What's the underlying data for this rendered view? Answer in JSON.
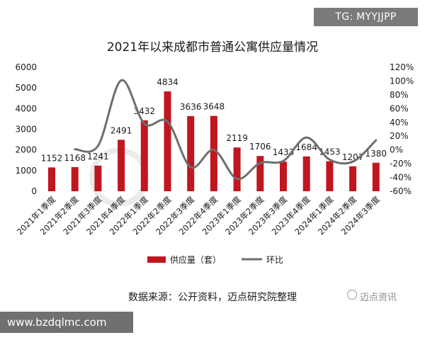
{
  "badge": {
    "tg": "TG: MYYJJPP",
    "url": "www.bzdqlmc.com"
  },
  "source": "数据来源：公开资料，迈点研究院整理",
  "watermark": {
    "label": "迈点资讯",
    "icon": "at-sign-icon"
  },
  "colors": {
    "bar": "#c0161f",
    "line": "#6e6e6e",
    "grid": "#d8d8d8",
    "text": "#1a1a1a"
  },
  "chart_data": {
    "type": "bar",
    "title": "2021年以来成都市普通公寓供应量情况",
    "categories": [
      "2021年1季度",
      "2021年2季度",
      "2021年3季度",
      "2021年4季度",
      "2022年1季度",
      "2022年2季度",
      "2022年3季度",
      "2022年4季度",
      "2023年1季度",
      "2023年2季度",
      "2023年3季度",
      "2023年4季度",
      "2024年1季度",
      "2024年2季度",
      "2024年3季度"
    ],
    "series": [
      {
        "name": "供应量（套）",
        "type": "bar",
        "axis": "left",
        "values": [
          1152,
          1168,
          1241,
          2491,
          3432,
          4834,
          3636,
          3648,
          2119,
          1706,
          1433,
          1684,
          1453,
          1207,
          1380
        ]
      },
      {
        "name": "环比",
        "type": "line",
        "axis": "right",
        "unit": "%",
        "values": [
          null,
          1,
          6,
          101,
          38,
          41,
          -25,
          0,
          -42,
          -19,
          -16,
          18,
          -14,
          -17,
          14
        ]
      }
    ],
    "left_axis": {
      "min": 0,
      "max": 6000,
      "ticks": [
        "0",
        "1000",
        "2000",
        "3000",
        "4000",
        "5000",
        "6000"
      ]
    },
    "right_axis": {
      "min": -60,
      "max": 120,
      "ticks": [
        "-60%",
        "-40%",
        "-20%",
        "0%",
        "20%",
        "40%",
        "60%",
        "80%",
        "100%",
        "120%"
      ]
    },
    "legend_position": "bottom",
    "grid": false
  }
}
